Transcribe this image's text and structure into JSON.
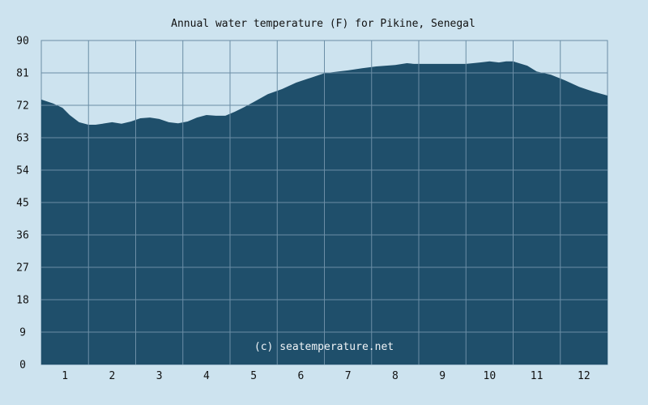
{
  "chart_data": {
    "type": "area",
    "title": "Annual water temperature (F) for Pikine, Senegal",
    "xlabel": "",
    "ylabel": "",
    "ylim": [
      0,
      90
    ],
    "yticks": [
      0,
      9,
      18,
      27,
      36,
      45,
      54,
      63,
      72,
      81,
      90
    ],
    "xlim": [
      0.5,
      12.5
    ],
    "xticks": [
      1,
      2,
      3,
      4,
      5,
      6,
      7,
      8,
      9,
      10,
      11,
      12
    ],
    "grid": true,
    "watermark": "(c) seatemperature.net",
    "colors": {
      "background": "#cde3ef",
      "fill": "#1f4f6b",
      "grid": "#6b8ea6",
      "text": "#111111"
    },
    "x": [
      0.5,
      0.75,
      0.95,
      1.1,
      1.3,
      1.5,
      1.65,
      1.8,
      2.0,
      2.2,
      2.4,
      2.6,
      2.8,
      3.0,
      3.2,
      3.4,
      3.6,
      3.8,
      4.0,
      4.2,
      4.4,
      4.6,
      4.8,
      5.0,
      5.3,
      5.6,
      5.9,
      6.2,
      6.5,
      6.8,
      7.0,
      7.3,
      7.6,
      8.0,
      8.25,
      8.4,
      8.6,
      9.0,
      9.5,
      9.8,
      10.0,
      10.2,
      10.35,
      10.5,
      10.8,
      11.0,
      11.3,
      11.6,
      11.9,
      12.2,
      12.5
    ],
    "values": [
      73.6,
      72.5,
      71.3,
      69.3,
      67.3,
      66.6,
      66.6,
      66.9,
      67.3,
      66.9,
      67.5,
      68.4,
      68.6,
      68.2,
      67.3,
      67.0,
      67.5,
      68.6,
      69.3,
      69.1,
      69.1,
      70.2,
      71.5,
      72.9,
      75.1,
      76.5,
      78.3,
      79.6,
      80.9,
      81.4,
      81.7,
      82.3,
      82.8,
      83.2,
      83.7,
      83.5,
      83.5,
      83.5,
      83.5,
      83.9,
      84.2,
      83.9,
      84.2,
      84.2,
      83.0,
      81.4,
      80.5,
      78.9,
      77.1,
      75.8,
      74.7
    ]
  }
}
